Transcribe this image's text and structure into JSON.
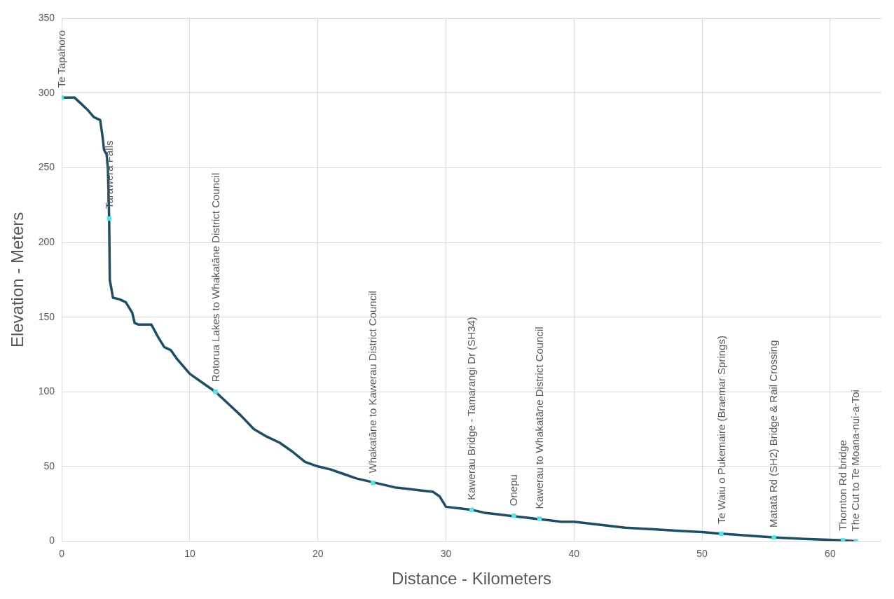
{
  "chart_data": {
    "type": "line",
    "xlabel": "Distance - Kilometers",
    "ylabel": "Elevation - Meters",
    "xlim": [
      0,
      64
    ],
    "ylim": [
      0,
      350
    ],
    "xticks": [
      0,
      10,
      20,
      30,
      40,
      50,
      60
    ],
    "yticks": [
      0,
      50,
      100,
      150,
      200,
      250,
      300,
      350
    ],
    "grid": true,
    "legend": false,
    "series": [
      {
        "color": "#1d4e63",
        "marker": "none",
        "line_style": "solid",
        "x": [
          0,
          1,
          1.5,
          2,
          2.5,
          3,
          3.2,
          3.3,
          3.5,
          3.6,
          3.7,
          3.75,
          4,
          4.5,
          5,
          5.5,
          5.7,
          6,
          7,
          7.5,
          8,
          8.5,
          9,
          10,
          11,
          12,
          13,
          14,
          15,
          16,
          17,
          18,
          19,
          20,
          21,
          22,
          23,
          24,
          25,
          26,
          27,
          28,
          29,
          29.5,
          30,
          31,
          32,
          33,
          34,
          35,
          36,
          37,
          38,
          39,
          40,
          42,
          44,
          46,
          48,
          50,
          51.5,
          54,
          55.5,
          58,
          61,
          62
        ],
        "values": [
          297,
          297,
          293,
          289,
          284,
          282,
          270,
          262,
          259,
          250,
          216,
          175,
          163,
          162,
          160,
          153,
          146,
          145,
          145,
          137,
          130,
          128,
          122,
          112,
          106,
          100,
          92,
          84,
          75,
          70,
          66,
          60,
          53,
          50,
          48,
          45,
          42,
          40,
          38,
          36,
          35,
          34,
          33,
          30,
          23,
          22,
          21,
          19,
          18,
          17,
          16,
          15,
          14,
          13,
          13,
          11,
          9,
          8,
          7,
          6,
          5,
          3.5,
          2.5,
          1.5,
          0.5,
          0
        ]
      },
      {
        "type": "scatter",
        "color": "#5ce1e6",
        "marker": "square",
        "x": [
          0,
          3.7,
          12,
          24.3,
          32,
          35.3,
          37.3,
          51.5,
          55.6,
          61,
          62
        ],
        "values": [
          297,
          216,
          100,
          39,
          21,
          17,
          15,
          5,
          2.5,
          0.5,
          0
        ]
      }
    ],
    "annotations": [
      {
        "text": "Te Tapahoro",
        "x": 0,
        "y": 297
      },
      {
        "text": "Tarawera Falls",
        "x": 3.7,
        "y": 216
      },
      {
        "text": "Rotorua Lakes to Whakatāne District Council",
        "x": 12,
        "y": 100
      },
      {
        "text": "Whakatāne to Kawerau District Council",
        "x": 24.3,
        "y": 39
      },
      {
        "text": "Kawerau Bridge - Tamarangi Dr (SH34)",
        "x": 32,
        "y": 21
      },
      {
        "text": "Onepu",
        "x": 35.3,
        "y": 17
      },
      {
        "text": "Kawerau to Whakatāne District Council",
        "x": 37.3,
        "y": 15
      },
      {
        "text": "Te Waiu o Pukemaire (Braemar Springs)",
        "x": 51.5,
        "y": 5
      },
      {
        "text": "Matatā Rd (SH2) Bridge & Rail Crossing",
        "x": 55.6,
        "y": 2.5
      },
      {
        "text": "Thornton Rd bridge",
        "x": 61,
        "y": 0.5
      },
      {
        "text": "The Cut to Te Moana-nui-a-Toi",
        "x": 62,
        "y": 0
      }
    ]
  }
}
